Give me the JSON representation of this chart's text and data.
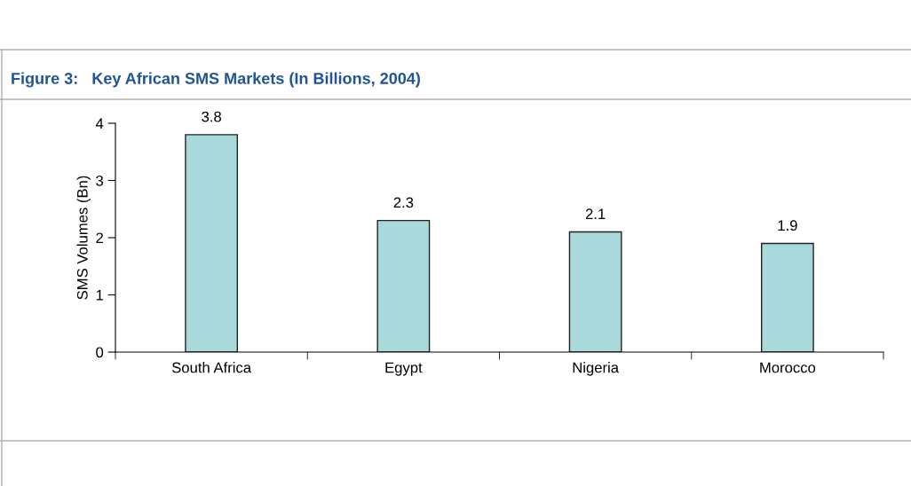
{
  "chart_data": {
    "type": "bar",
    "title": "Figure 3:   Key African SMS Markets (In Billions, 2004)",
    "ylabel": "SMS Volumes (Bn)",
    "categories": [
      "South Africa",
      "Egypt",
      "Nigeria",
      "Morocco"
    ],
    "values": [
      3.8,
      2.3,
      2.1,
      1.9
    ],
    "color": "#a9d9da",
    "ylim": [
      0,
      4
    ],
    "yticks": [
      0,
      1,
      2,
      3,
      4
    ],
    "grid": false,
    "data_labels": true
  }
}
